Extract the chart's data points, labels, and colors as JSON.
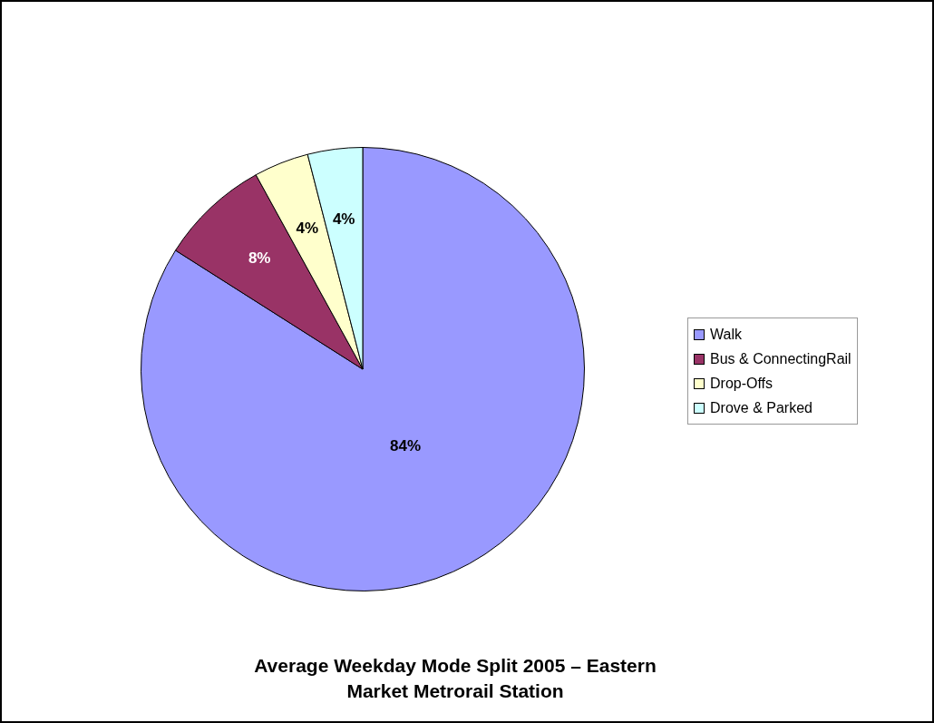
{
  "chart_data": {
    "type": "pie",
    "title": "Average Weekday Mode Split 2005 – Eastern Market Metrorail Station",
    "categories": [
      "Walk",
      "Bus & ConnectingRail",
      "Drop-Offs",
      "Drove & Parked"
    ],
    "values": [
      84,
      8,
      4,
      4
    ],
    "colors": [
      "#9999ff",
      "#993366",
      "#ffffcc",
      "#ccffff"
    ],
    "value_labels": [
      "84%",
      "8%",
      "4%",
      "4%"
    ],
    "legend": "right"
  }
}
